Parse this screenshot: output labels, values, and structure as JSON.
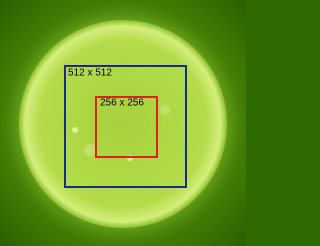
{
  "boxes": [
    {
      "label": "512 x 512"
    },
    {
      "label": "256 x 256"
    }
  ]
}
